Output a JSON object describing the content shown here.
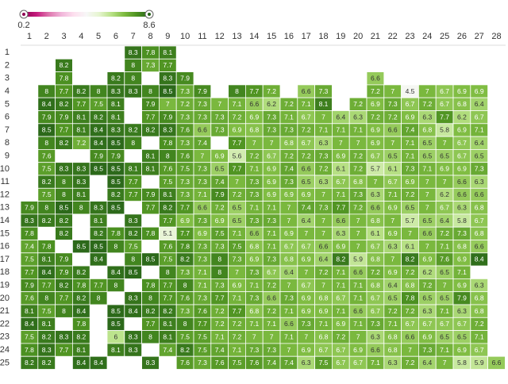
{
  "chart_data": {
    "type": "heatmap",
    "x": [
      1,
      2,
      3,
      4,
      5,
      6,
      7,
      8,
      9,
      10,
      11,
      12,
      13,
      14,
      15,
      16,
      17,
      18,
      19,
      20,
      21,
      22,
      23,
      24,
      25,
      26,
      27,
      28
    ],
    "y": [
      1,
      2,
      3,
      4,
      5,
      6,
      7,
      8,
      9,
      10,
      11,
      12,
      13,
      14,
      15,
      16,
      17,
      18,
      19,
      20,
      21,
      22,
      23,
      24,
      25
    ],
    "values": [
      [
        null,
        null,
        null,
        null,
        null,
        null,
        8.3,
        7.8,
        8.1,
        null,
        null,
        null,
        null,
        null,
        null,
        null,
        null,
        null,
        null,
        null,
        null,
        null,
        null,
        null,
        null,
        null,
        null,
        null
      ],
      [
        null,
        null,
        8.2,
        null,
        null,
        null,
        8.0,
        7.3,
        7.7,
        null,
        null,
        null,
        null,
        null,
        null,
        null,
        null,
        null,
        null,
        null,
        null,
        null,
        null,
        null,
        null,
        null,
        null,
        null
      ],
      [
        null,
        null,
        7.8,
        null,
        null,
        8.2,
        8.0,
        null,
        8.3,
        7.9,
        null,
        null,
        null,
        null,
        null,
        null,
        null,
        null,
        null,
        null,
        6.6,
        null,
        null,
        null,
        null,
        null,
        null,
        null
      ],
      [
        null,
        8.0,
        7.7,
        8.2,
        8.0,
        8.3,
        8.3,
        8.0,
        8.5,
        7.3,
        7.9,
        null,
        8.0,
        7.7,
        7.2,
        null,
        6.6,
        7.3,
        null,
        null,
        7.2,
        7.0,
        4.5,
        7.0,
        6.7,
        6.9,
        6.9,
        null
      ],
      [
        null,
        8.4,
        8.2,
        7.7,
        7.5,
        8.1,
        null,
        7.9,
        7.0,
        7.2,
        7.3,
        7.0,
        7.1,
        6.6,
        6.2,
        7.2,
        7.1,
        8.1,
        null,
        7.2,
        6.9,
        7.3,
        6.7,
        7.2,
        6.7,
        6.8,
        6.4,
        null
      ],
      [
        null,
        7.9,
        7.9,
        8.1,
        8.2,
        8.1,
        null,
        7.7,
        7.9,
        7.3,
        7.3,
        7.3,
        7.2,
        6.9,
        7.3,
        7.1,
        6.7,
        7.0,
        6.4,
        6.3,
        7.2,
        7.2,
        6.9,
        6.3,
        7.7,
        6.2,
        6.7,
        null
      ],
      [
        null,
        8.5,
        7.7,
        8.1,
        8.4,
        8.3,
        8.2,
        8.2,
        8.3,
        7.6,
        6.6,
        7.3,
        6.9,
        6.8,
        7.3,
        7.3,
        7.2,
        7.1,
        7.1,
        7.1,
        6.9,
        6.6,
        7.4,
        6.8,
        5.8,
        6.9,
        7.1,
        null
      ],
      [
        null,
        8.0,
        8.2,
        7.2,
        8.4,
        8.5,
        8.0,
        null,
        7.8,
        7.3,
        7.4,
        null,
        7.7,
        7.0,
        7.0,
        6.8,
        6.7,
        6.3,
        7.0,
        7.0,
        6.9,
        7.0,
        7.1,
        6.5,
        7.0,
        6.7,
        6.4,
        null
      ],
      [
        null,
        7.6,
        null,
        null,
        7.9,
        7.9,
        null,
        8.1,
        8.0,
        7.6,
        7.0,
        6.9,
        5.6,
        7.2,
        6.7,
        7.2,
        7.2,
        7.3,
        6.9,
        7.2,
        6.7,
        6.5,
        7.1,
        6.5,
        6.5,
        6.7,
        6.5,
        null
      ],
      [
        null,
        7.5,
        8.3,
        8.3,
        8.5,
        8.5,
        8.1,
        8.1,
        7.6,
        7.5,
        7.3,
        6.5,
        7.7,
        7.1,
        6.9,
        7.4,
        6.6,
        7.2,
        6.1,
        7.2,
        5.7,
        6.1,
        7.3,
        7.1,
        6.9,
        6.9,
        7.3,
        null
      ],
      [
        null,
        8.2,
        8.0,
        8.3,
        null,
        8.5,
        7.7,
        null,
        7.5,
        7.3,
        7.3,
        7.4,
        7.0,
        7.3,
        6.9,
        7.3,
        6.5,
        6.3,
        6.7,
        6.8,
        7.0,
        6.7,
        6.9,
        7.0,
        7.0,
        6.6,
        6.3,
        null
      ],
      [
        null,
        7.5,
        8.0,
        8.1,
        null,
        8.2,
        7.7,
        7.9,
        8.1,
        7.3,
        7.1,
        7.9,
        7.2,
        7.3,
        6.9,
        6.9,
        6.9,
        7.0,
        7.1,
        7.3,
        6.3,
        7.1,
        7.2,
        7.0,
        6.2,
        6.6,
        6.6,
        null
      ],
      [
        7.9,
        8.0,
        8.5,
        8.0,
        8.3,
        8.5,
        null,
        7.7,
        8.2,
        7.7,
        6.6,
        7.2,
        6.5,
        7.1,
        7.1,
        7.0,
        7.4,
        7.3,
        7.7,
        7.2,
        6.6,
        6.9,
        6.5,
        7.0,
        6.7,
        6.3,
        6.8,
        null
      ],
      [
        8.3,
        8.2,
        8.2,
        null,
        8.1,
        null,
        8.3,
        null,
        7.7,
        6.9,
        7.3,
        6.9,
        6.5,
        7.3,
        7.3,
        7.0,
        6.4,
        7.0,
        6.6,
        7.0,
        6.8,
        7.0,
        5.7,
        6.5,
        6.4,
        5.8,
        6.7,
        null
      ],
      [
        7.8,
        null,
        8.2,
        null,
        8.2,
        7.8,
        8.2,
        7.8,
        5.1,
        7.7,
        6.9,
        7.5,
        7.1,
        6.6,
        7.1,
        6.9,
        7.0,
        7.0,
        6.3,
        7.0,
        6.1,
        6.9,
        7.0,
        6.6,
        7.2,
        7.3,
        6.8,
        null
      ],
      [
        7.4,
        7.8,
        null,
        8.5,
        8.5,
        8.0,
        7.5,
        null,
        7.6,
        7.8,
        7.3,
        7.3,
        7.5,
        6.8,
        7.1,
        6.7,
        6.7,
        6.6,
        6.9,
        7.0,
        6.7,
        6.3,
        6.1,
        7.0,
        7.1,
        6.8,
        6.6,
        null
      ],
      [
        7.5,
        8.1,
        7.9,
        null,
        8.4,
        null,
        8.0,
        8.5,
        7.5,
        8.2,
        7.3,
        8.0,
        7.3,
        6.9,
        7.3,
        6.8,
        6.9,
        6.4,
        8.2,
        5.9,
        6.8,
        7.0,
        8.2,
        6.9,
        7.6,
        6.9,
        8.4,
        null
      ],
      [
        7.7,
        8.4,
        7.9,
        8.2,
        null,
        8.4,
        8.5,
        null,
        8.0,
        7.3,
        7.1,
        8.0,
        7.0,
        7.3,
        6.7,
        6.4,
        7.0,
        7.2,
        7.1,
        6.6,
        7.2,
        6.9,
        7.2,
        6.2,
        6.5,
        7.1,
        null,
        null
      ],
      [
        7.9,
        7.7,
        8.2,
        7.8,
        7.7,
        8.0,
        null,
        7.8,
        7.7,
        8.0,
        7.1,
        7.3,
        6.9,
        7.1,
        7.2,
        7.0,
        6.7,
        7.0,
        7.1,
        7.1,
        6.8,
        6.4,
        6.8,
        7.2,
        7.0,
        6.9,
        6.3,
        null
      ],
      [
        7.6,
        8.0,
        7.7,
        8.2,
        8.0,
        null,
        8.3,
        8.0,
        7.7,
        7.6,
        7.3,
        7.7,
        7.1,
        7.3,
        6.6,
        7.3,
        6.9,
        6.8,
        6.7,
        7.1,
        6.7,
        6.5,
        7.8,
        6.5,
        6.5,
        7.9,
        6.8,
        null
      ],
      [
        8.1,
        7.5,
        8.0,
        8.4,
        null,
        8.5,
        8.4,
        8.2,
        8.2,
        7.3,
        7.6,
        7.2,
        7.7,
        6.8,
        7.2,
        7.1,
        6.9,
        6.9,
        7.1,
        6.6,
        6.7,
        7.2,
        7.2,
        6.3,
        7.1,
        6.3,
        6.8,
        null
      ],
      [
        8.4,
        8.1,
        null,
        7.8,
        null,
        8.5,
        null,
        7.7,
        8.1,
        8.0,
        7.7,
        7.2,
        7.2,
        7.1,
        7.1,
        6.6,
        7.3,
        7.1,
        6.9,
        7.1,
        7.3,
        7.1,
        6.7,
        6.7,
        6.7,
        6.7,
        7.2,
        null
      ],
      [
        7.5,
        8.2,
        8.3,
        8.2,
        null,
        6.0,
        8.3,
        8.0,
        8.1,
        7.5,
        7.5,
        7.1,
        7.2,
        7.0,
        7.0,
        7.1,
        7.0,
        6.8,
        7.2,
        7.0,
        6.3,
        6.8,
        6.6,
        6.9,
        6.5,
        6.5,
        7.1,
        null
      ],
      [
        7.8,
        8.3,
        7.7,
        8.1,
        null,
        8.1,
        8.3,
        null,
        7.4,
        8.2,
        7.5,
        7.4,
        7.1,
        7.3,
        7.3,
        7.0,
        6.9,
        6.7,
        6.7,
        6.9,
        6.6,
        6.8,
        7.0,
        7.3,
        7.1,
        6.9,
        6.7,
        null
      ],
      [
        8.2,
        8.2,
        null,
        8.4,
        8.4,
        null,
        null,
        8.3,
        null,
        7.6,
        7.3,
        7.6,
        7.5,
        7.6,
        7.4,
        7.4,
        6.3,
        7.5,
        6.7,
        6.7,
        7.1,
        6.3,
        7.2,
        6.4,
        7.0,
        5.8,
        5.9,
        6.6
      ]
    ],
    "zlim": [
      0.2,
      8.6
    ],
    "colorscale": [
      "#8e0152",
      "#c51b7d",
      "#de77ae",
      "#f1b6da",
      "#fde0ef",
      "#f7f7f7",
      "#e6f5d0",
      "#b8e186",
      "#7fbc41",
      "#4d9221",
      "#276419"
    ]
  }
}
